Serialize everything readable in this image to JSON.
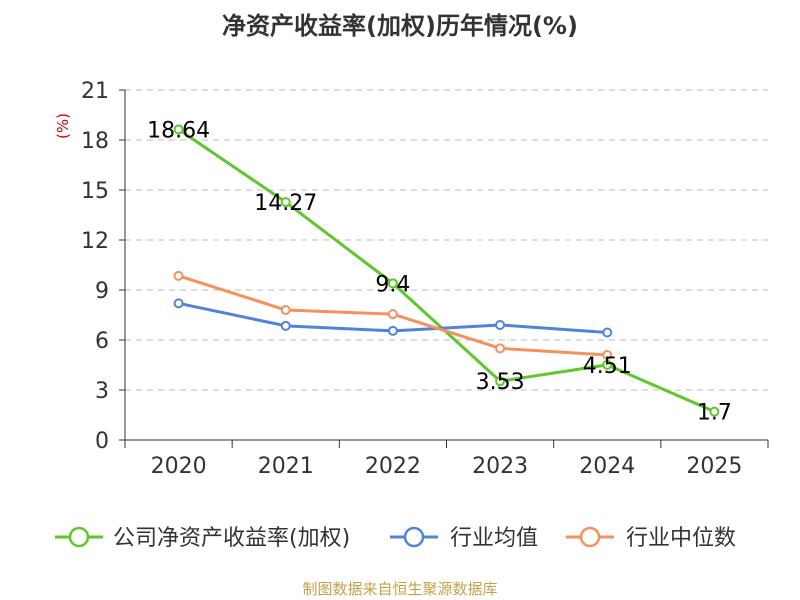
{
  "chart_data": {
    "type": "line",
    "title": "净资产收益率(加权)历年情况(%)",
    "ylabel": "(%)",
    "xlabel": "",
    "categories": [
      "2020",
      "2021",
      "2022",
      "2023",
      "2024",
      "2025"
    ],
    "ylim": [
      0,
      21
    ],
    "yticks": [
      0,
      3,
      6,
      9,
      12,
      15,
      18,
      21
    ],
    "grid": "horizontal-dashed",
    "legend_position": "bottom",
    "series": [
      {
        "name": "公司净资产收益率(加权)",
        "color": "#5ec72b",
        "values": [
          18.64,
          14.27,
          9.4,
          3.53,
          4.51,
          1.7
        ],
        "labels": [
          "18.64",
          "14.27",
          "9.4",
          "3.53",
          "4.51",
          "1.7"
        ]
      },
      {
        "name": "行业均值",
        "color": "#4f83dc",
        "values": [
          8.2,
          6.85,
          6.55,
          6.9,
          6.45,
          null
        ]
      },
      {
        "name": "行业中位数",
        "color": "#f7905c",
        "values": [
          9.85,
          7.8,
          7.55,
          5.5,
          5.1,
          null
        ]
      }
    ]
  },
  "source": "制图数据来自恒生聚源数据库",
  "colors": {
    "axis": "#333333",
    "grid": "#bbbbbb",
    "unit": "#cc0000",
    "source": "#c8a04a"
  }
}
